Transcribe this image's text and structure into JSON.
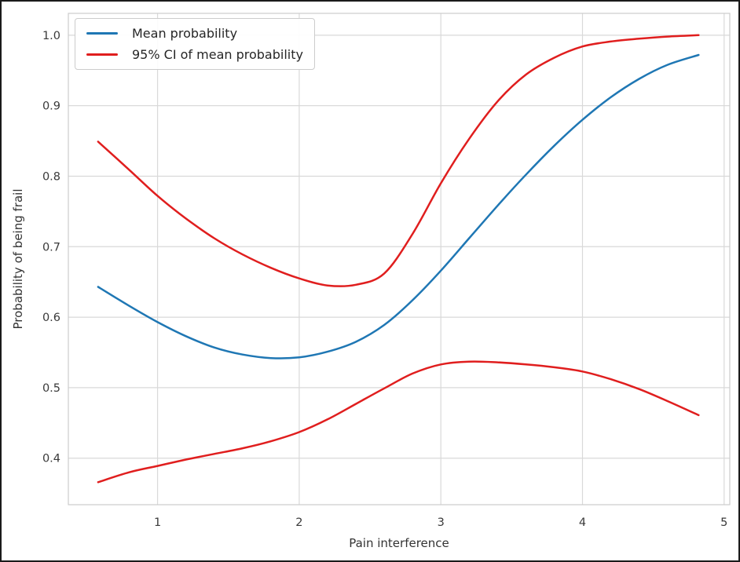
{
  "chart_data": {
    "type": "line",
    "title": "",
    "xlabel": "Pain interference",
    "ylabel": "Probability of being frail",
    "xlim": [
      0.37,
      5.04
    ],
    "ylim": [
      0.334,
      1.031
    ],
    "xticks": [
      1,
      2,
      3,
      4,
      5
    ],
    "yticks": [
      0.4,
      0.5,
      0.6,
      0.7,
      0.8,
      0.9,
      1.0
    ],
    "grid": true,
    "legend_position": "upper left",
    "colors": {
      "mean": "#1f77b4",
      "ci": "#e01e1e",
      "grid": "#d9d9d9",
      "spine": "#cccccc",
      "tick_text": "#3a3a3a"
    },
    "legend": [
      {
        "label": "Mean probability",
        "color_key": "mean"
      },
      {
        "label": "95% CI of mean probability",
        "color_key": "ci"
      }
    ],
    "x": [
      0.58,
      0.8,
      1.0,
      1.2,
      1.4,
      1.6,
      1.8,
      2.0,
      2.2,
      2.4,
      2.6,
      2.8,
      3.0,
      3.2,
      3.4,
      3.6,
      3.8,
      4.0,
      4.2,
      4.4,
      4.6,
      4.82
    ],
    "series": [
      {
        "name": "Mean probability",
        "color_key": "mean",
        "values": [
          0.643,
          0.616,
          0.593,
          0.573,
          0.557,
          0.547,
          0.542,
          0.543,
          0.551,
          0.565,
          0.589,
          0.624,
          0.666,
          0.712,
          0.758,
          0.802,
          0.843,
          0.88,
          0.912,
          0.938,
          0.958,
          0.972
        ]
      },
      {
        "name": "95% CI upper bound",
        "color_key": "ci",
        "values": [
          0.849,
          0.809,
          0.772,
          0.74,
          0.712,
          0.689,
          0.67,
          0.655,
          0.645,
          0.646,
          0.662,
          0.718,
          0.79,
          0.853,
          0.906,
          0.944,
          0.968,
          0.984,
          0.991,
          0.995,
          0.998,
          1.0
        ]
      },
      {
        "name": "95% CI lower bound",
        "color_key": "ci",
        "values": [
          0.366,
          0.38,
          0.389,
          0.398,
          0.406,
          0.414,
          0.424,
          0.437,
          0.455,
          0.477,
          0.499,
          0.52,
          0.533,
          0.537,
          0.536,
          0.533,
          0.529,
          0.523,
          0.512,
          0.498,
          0.481,
          0.461
        ]
      }
    ]
  }
}
